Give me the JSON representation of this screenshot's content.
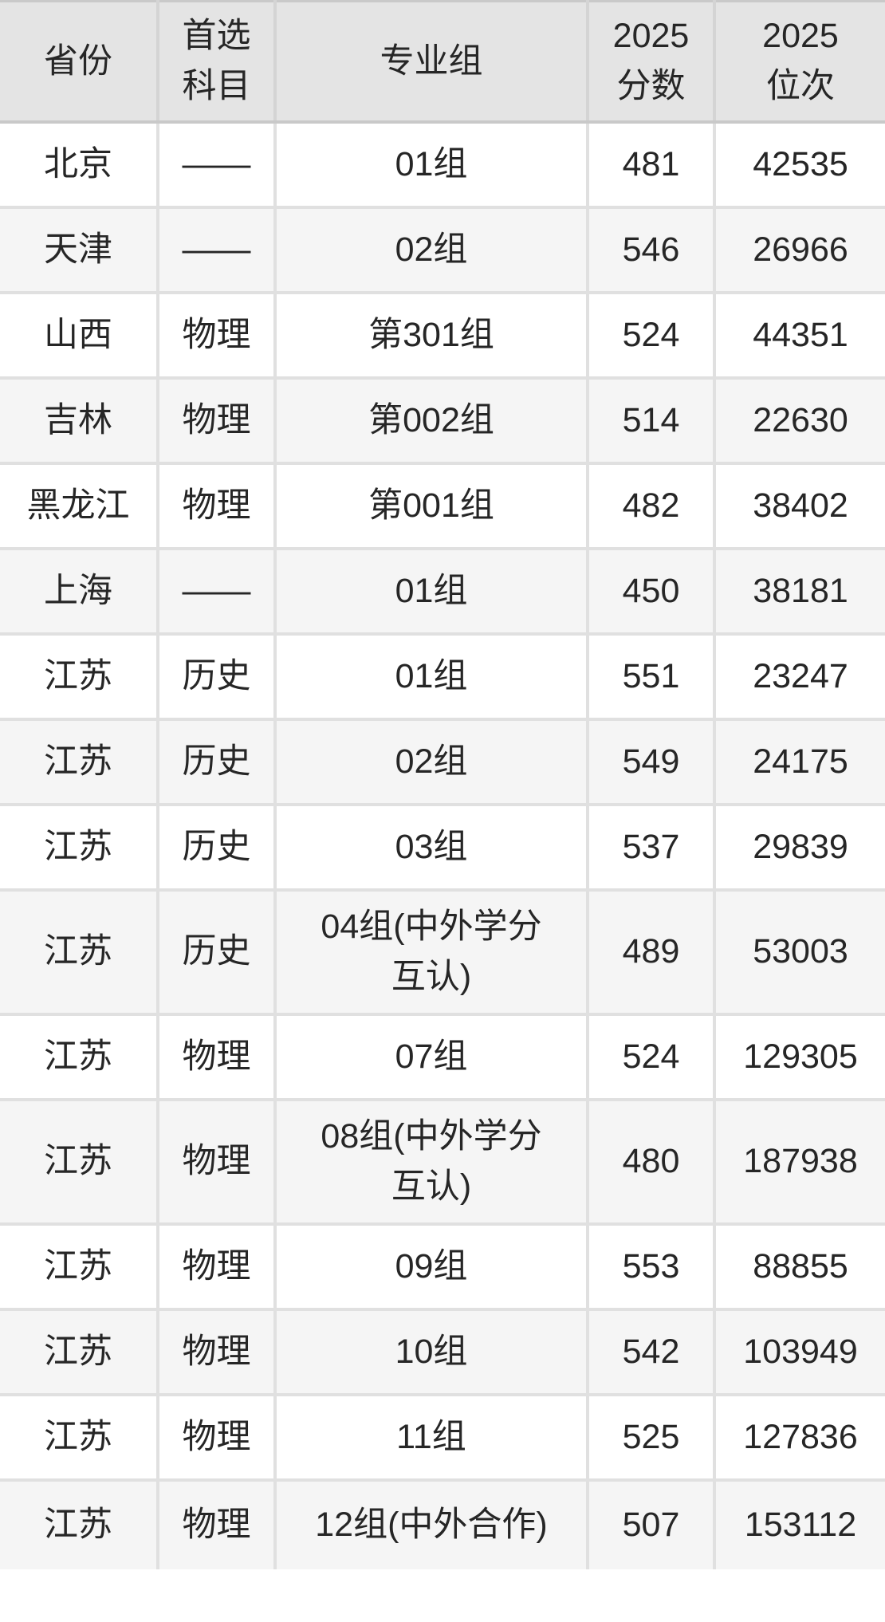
{
  "colors": {
    "header_background": "#e4e4e4",
    "header_border": "#c9c9c9",
    "row_alternate_background": "#f5f5f5",
    "cell_border": "#e0e0e0",
    "text": "#262626"
  },
  "table": {
    "headers": [
      "省份",
      "首选\n科目",
      "专业组",
      "2025\n分数",
      "2025\n位次"
    ],
    "rows": [
      {
        "province": "北京",
        "subject": "——",
        "group": "01组",
        "score": "481",
        "rank": "42535"
      },
      {
        "province": "天津",
        "subject": "——",
        "group": "02组",
        "score": "546",
        "rank": "26966"
      },
      {
        "province": "山西",
        "subject": "物理",
        "group": "第301组",
        "score": "524",
        "rank": "44351"
      },
      {
        "province": "吉林",
        "subject": "物理",
        "group": "第002组",
        "score": "514",
        "rank": "22630"
      },
      {
        "province": "黑龙江",
        "subject": "物理",
        "group": "第001组",
        "score": "482",
        "rank": "38402"
      },
      {
        "province": "上海",
        "subject": "——",
        "group": "01组",
        "score": "450",
        "rank": "38181"
      },
      {
        "province": "江苏",
        "subject": "历史",
        "group": "01组",
        "score": "551",
        "rank": "23247"
      },
      {
        "province": "江苏",
        "subject": "历史",
        "group": "02组",
        "score": "549",
        "rank": "24175"
      },
      {
        "province": "江苏",
        "subject": "历史",
        "group": "03组",
        "score": "537",
        "rank": "29839"
      },
      {
        "province": "江苏",
        "subject": "历史",
        "group": "04组(中外学分\n互认)",
        "score": "489",
        "rank": "53003"
      },
      {
        "province": "江苏",
        "subject": "物理",
        "group": "07组",
        "score": "524",
        "rank": "129305"
      },
      {
        "province": "江苏",
        "subject": "物理",
        "group": "08组(中外学分\n互认)",
        "score": "480",
        "rank": "187938"
      },
      {
        "province": "江苏",
        "subject": "物理",
        "group": "09组",
        "score": "553",
        "rank": "88855"
      },
      {
        "province": "江苏",
        "subject": "物理",
        "group": "10组",
        "score": "542",
        "rank": "103949"
      },
      {
        "province": "江苏",
        "subject": "物理",
        "group": "11组",
        "score": "525",
        "rank": "127836"
      },
      {
        "province": "江苏",
        "subject": "物理",
        "group": "12组(中外合作)",
        "score": "507",
        "rank": "153112"
      }
    ]
  }
}
